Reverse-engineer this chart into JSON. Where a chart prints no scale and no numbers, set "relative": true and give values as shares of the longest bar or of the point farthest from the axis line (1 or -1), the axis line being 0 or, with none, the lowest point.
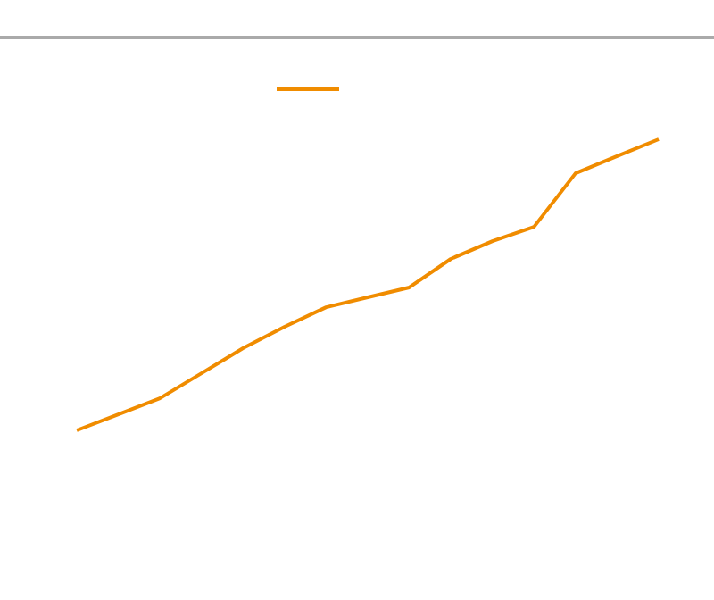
{
  "chart_data": {
    "type": "line",
    "relative": true,
    "categories": [
      null,
      null,
      null,
      null,
      null,
      null,
      null,
      null,
      null,
      null,
      null,
      null,
      null,
      null,
      null
    ],
    "series": [
      {
        "color": "#f08c00",
        "values": [
          0,
          0.055,
          0.11,
          0.196,
          0.282,
          0.356,
          0.423,
          0.457,
          0.491,
          0.589,
          0.65,
          0.699,
          0.883,
          0.942,
          1
        ]
      }
    ],
    "marker": "none",
    "line_style": "solid"
  }
}
